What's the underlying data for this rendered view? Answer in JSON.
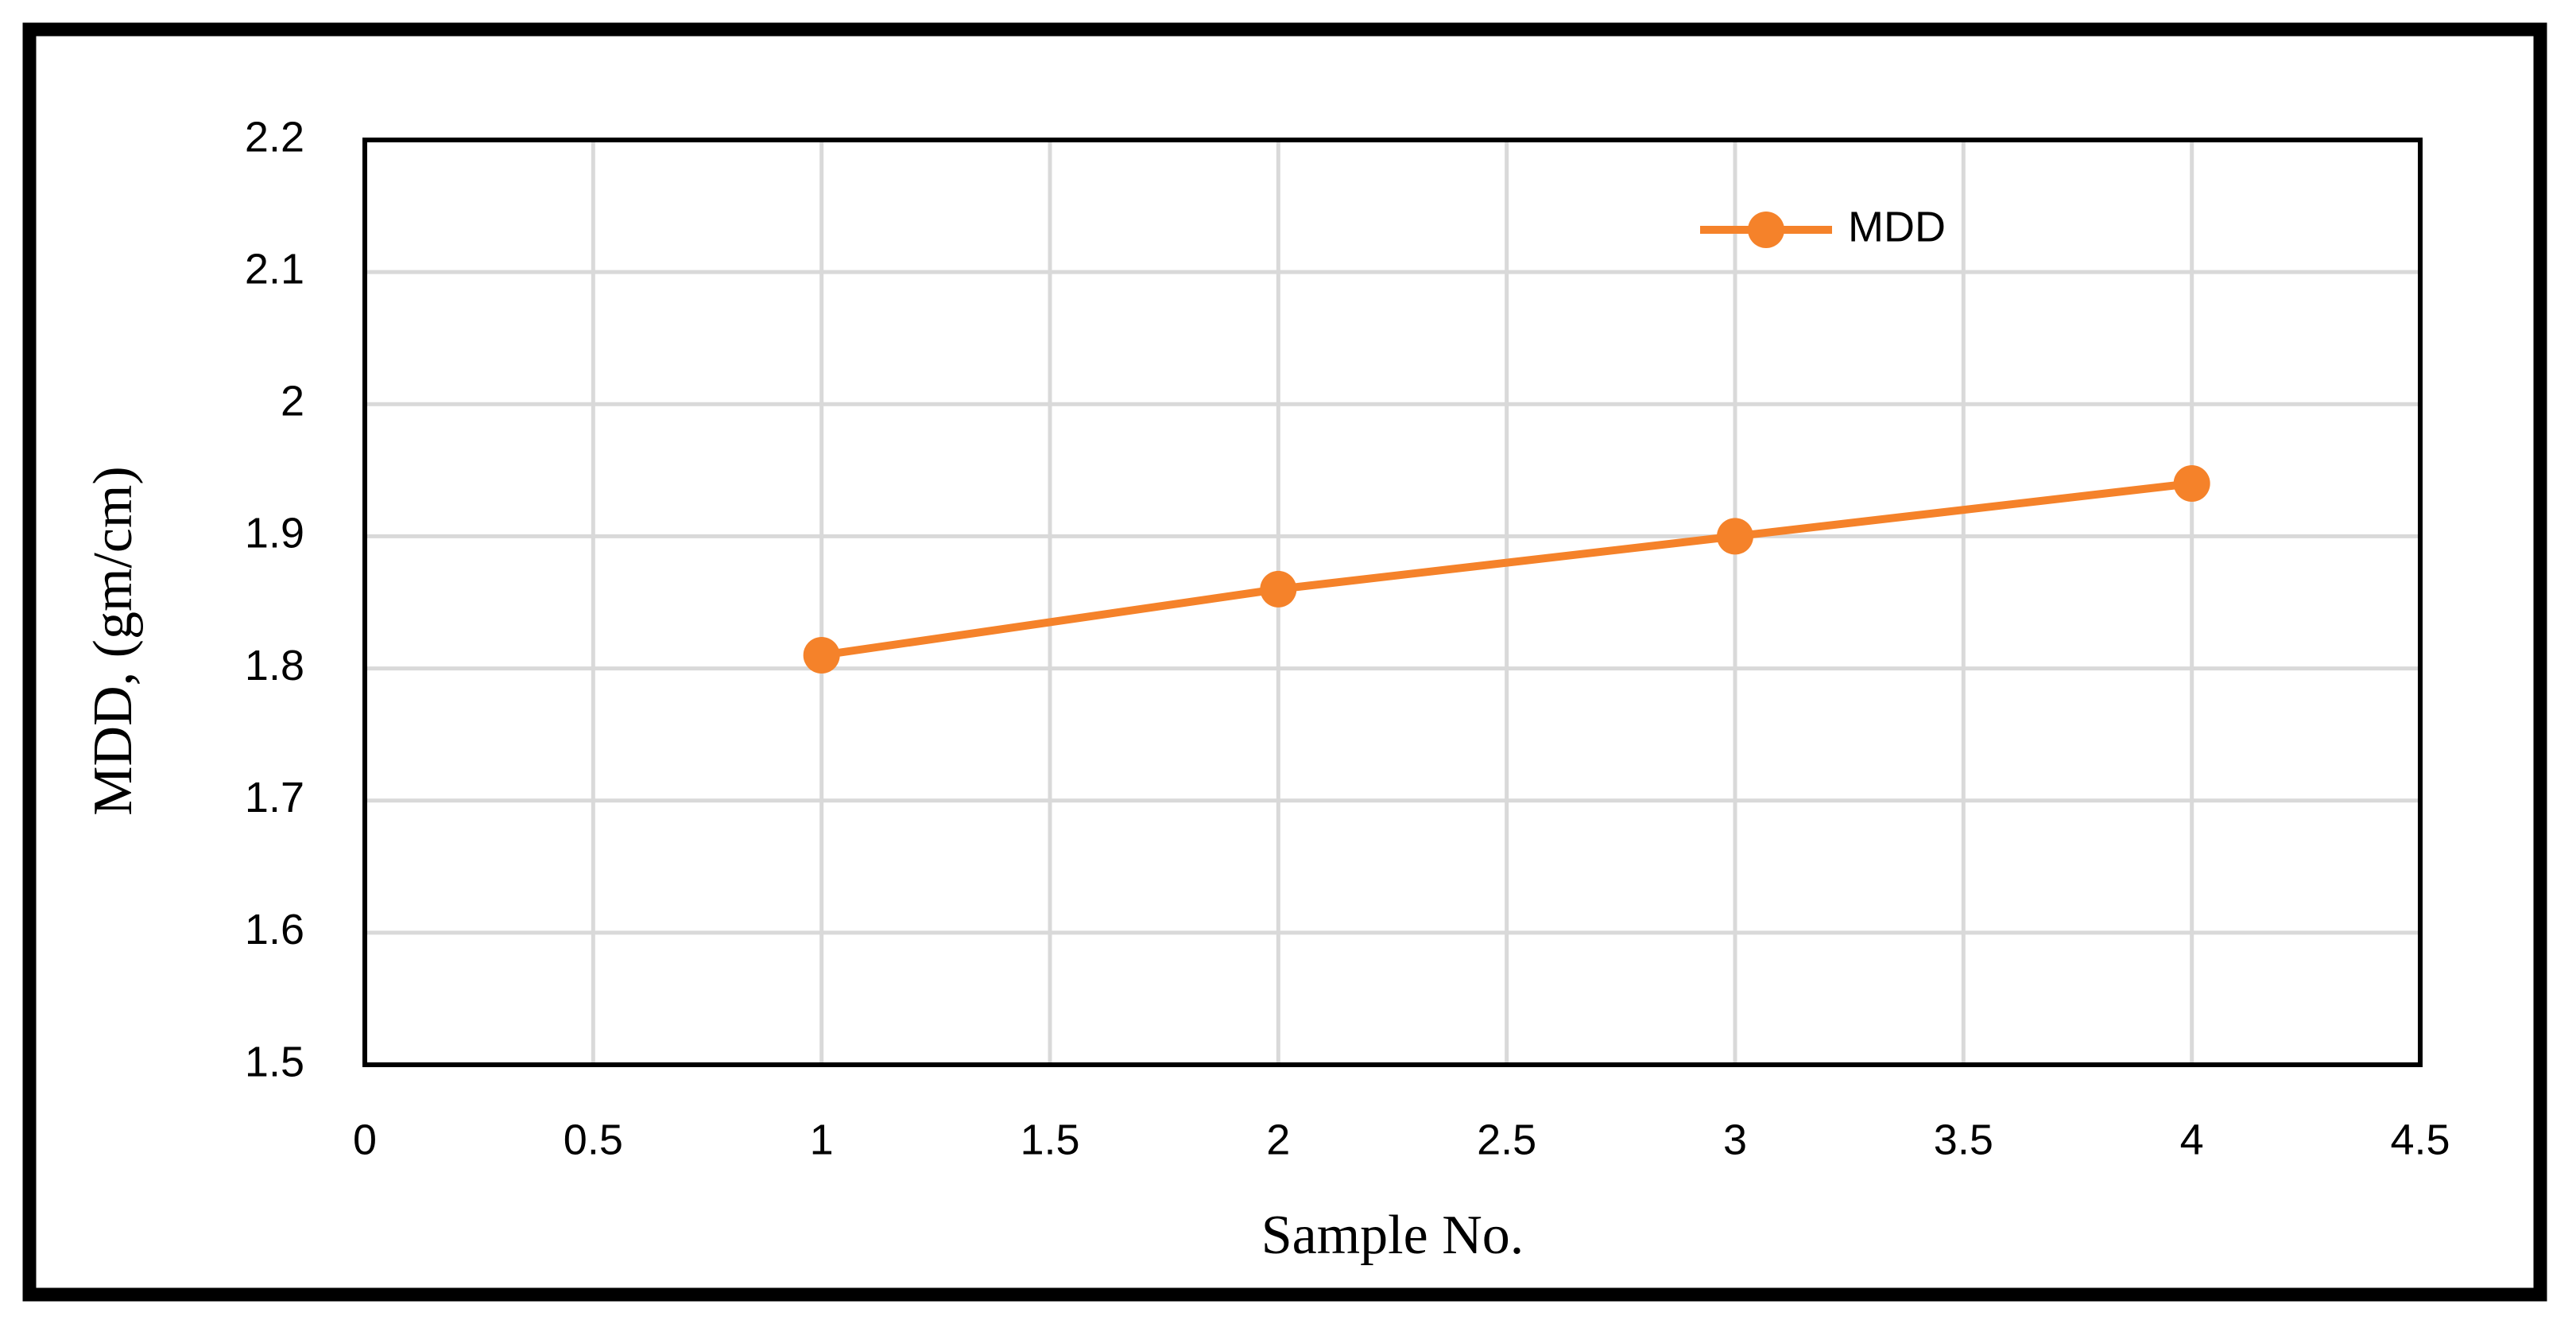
{
  "chart_data": {
    "type": "line",
    "x": [
      1,
      2,
      3,
      4
    ],
    "series": [
      {
        "name": "MDD",
        "color": "#f5822a",
        "values": [
          1.81,
          1.86,
          1.9,
          1.94
        ]
      }
    ],
    "xlabel": "Sample No.",
    "ylabel": "MDD, (gm/cm)",
    "xlim": [
      0,
      4.5
    ],
    "xticks": [
      0,
      0.5,
      1,
      1.5,
      2,
      2.5,
      3,
      3.5,
      4,
      4.5
    ],
    "ylim": [
      1.5,
      2.2
    ],
    "yticks": [
      1.5,
      1.6,
      1.7,
      1.8,
      1.9,
      2,
      2.1,
      2.2
    ],
    "grid": true,
    "legend": "upper right"
  }
}
